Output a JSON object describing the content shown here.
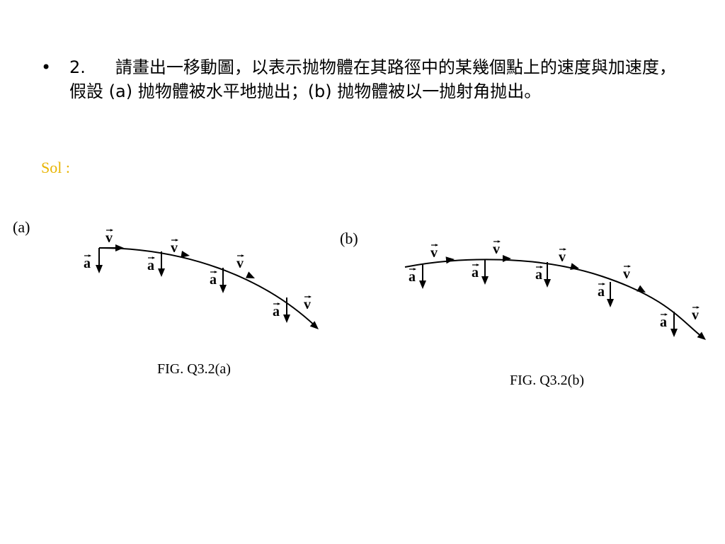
{
  "question": {
    "number": "2.",
    "text": "請畫出一移動圖，以表示抛物體在其路徑中的某幾個點上的速度與加速度，假設 (a) 抛物體被水平地抛出；(b) 抛物體被以一抛射角抛出。"
  },
  "solution_label": "Sol :",
  "figures": [
    {
      "panel": "(a)",
      "caption": "FIG. Q3.2(a)",
      "velocity_label": "v",
      "acceleration_label": "a"
    },
    {
      "panel": "(b)",
      "caption": "FIG. Q3.2(b)",
      "velocity_label": "v",
      "acceleration_label": "a"
    }
  ]
}
